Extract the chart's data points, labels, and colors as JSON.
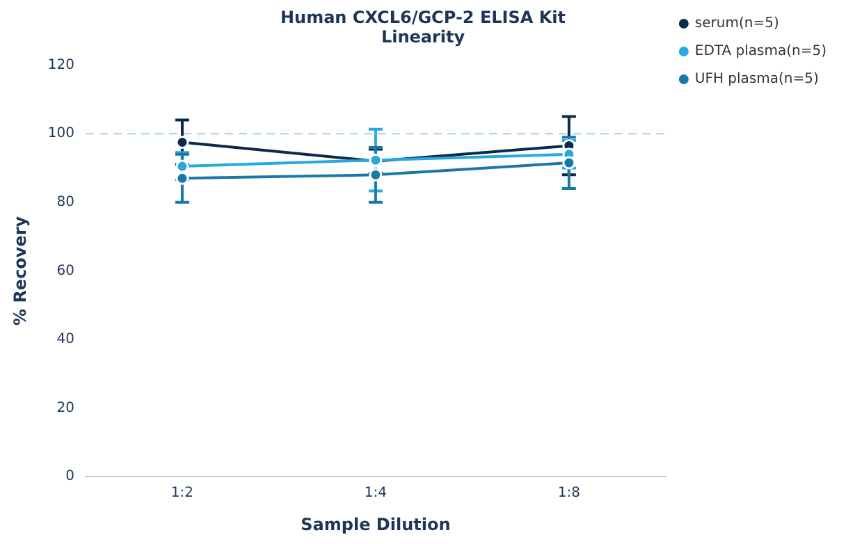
{
  "chart_data": {
    "type": "line",
    "title": "Human CXCL6/GCP-2 ELISA Kit",
    "subtitle": "Linearity",
    "xlabel": "Sample Dilution",
    "ylabel": "% Recovery",
    "categories": [
      "1:2",
      "1:4",
      "1:8"
    ],
    "series": [
      {
        "name": "serum(n=5)",
        "color": "#0b2a4a",
        "values": [
          97.5,
          92,
          96.5
        ],
        "errors": [
          6.5,
          3.5,
          8.5
        ]
      },
      {
        "name": "EDTA plasma(n=5)",
        "color": "#29a8e0",
        "values": [
          90.5,
          92.3,
          94
        ],
        "errors": [
          4,
          9,
          4
        ]
      },
      {
        "name": "UFH plasma(n=5)",
        "color": "#1a78a8",
        "values": [
          87,
          88,
          91.5
        ],
        "errors": [
          7,
          8,
          7.5
        ]
      }
    ],
    "ylim": [
      0,
      120
    ],
    "yticks": [
      0,
      20,
      40,
      60,
      80,
      100,
      120
    ],
    "grid": false,
    "legend": "top right",
    "marker": "circle",
    "line_style": "solid",
    "ref_lines": [
      {
        "axis": "y",
        "value": 100,
        "color": "#9fd4ef",
        "line_style": "dashed"
      }
    ]
  }
}
